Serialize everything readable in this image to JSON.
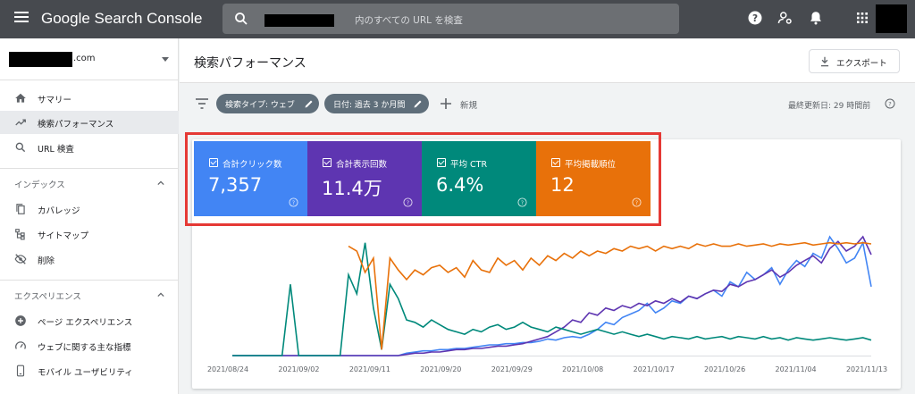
{
  "topbar": {
    "logo": "Google Search Console",
    "search_placeholder": "内のすべての URL を検査"
  },
  "sidebar": {
    "property_suffix": ".com",
    "items": [
      {
        "label": "サマリー",
        "icon": "home-icon"
      },
      {
        "label": "検索パフォーマンス",
        "icon": "trending-up-icon",
        "active": true
      },
      {
        "label": "URL 検査",
        "icon": "search-icon"
      }
    ],
    "sections": [
      {
        "title": "インデックス",
        "items": [
          {
            "label": "カバレッジ",
            "icon": "file-copy-icon"
          },
          {
            "label": "サイトマップ",
            "icon": "sitemap-icon"
          },
          {
            "label": "削除",
            "icon": "visibility-off-icon"
          }
        ]
      },
      {
        "title": "エクスペリエンス",
        "items": [
          {
            "label": "ページ エクスペリエンス",
            "icon": "add-circle-icon"
          },
          {
            "label": "ウェブに関する主な指標",
            "icon": "speed-icon"
          },
          {
            "label": "モバイル ユーザビリティ",
            "icon": "smartphone-icon"
          }
        ]
      }
    ]
  },
  "header": {
    "title": "検索パフォーマンス",
    "export_label": "エクスポート"
  },
  "filters": {
    "chips": [
      "検索タイプ: ウェブ",
      "日付: 過去 3 か月間"
    ],
    "new_label": "新規",
    "last_updated": "最終更新日: 29 時間前"
  },
  "metrics": [
    {
      "label": "合計クリック数",
      "value": "7,357",
      "color": "#4285f4"
    },
    {
      "label": "合計表示回数",
      "value": "11.4万",
      "color": "#5e35b1"
    },
    {
      "label": "平均 CTR",
      "value": "6.4%",
      "color": "#00897b"
    },
    {
      "label": "平均掲載順位",
      "value": "12",
      "color": "#e8710a"
    }
  ],
  "chart_data": {
    "type": "line",
    "x_tick_labels": [
      "2021/08/24",
      "2021/09/02",
      "2021/09/11",
      "2021/09/20",
      "2021/09/29",
      "2021/10/08",
      "2021/10/17",
      "2021/10/26",
      "2021/11/04",
      "2021/11/13"
    ],
    "series": [
      {
        "name": "合計クリック数",
        "color": "#4285f4",
        "values": [
          0,
          0,
          0,
          0,
          0,
          0,
          0,
          0,
          0,
          0,
          0,
          0,
          0,
          0,
          0,
          0,
          0,
          0,
          0,
          0,
          0,
          2,
          3,
          4,
          4,
          5,
          5,
          6,
          6,
          7,
          8,
          9,
          9,
          10,
          10,
          11,
          11,
          12,
          14,
          13,
          15,
          16,
          15,
          18,
          22,
          28,
          26,
          32,
          35,
          38,
          44,
          36,
          40,
          46,
          44,
          50,
          48,
          52,
          55,
          50,
          62,
          58,
          70,
          64,
          68,
          74,
          60,
          72,
          80,
          75,
          86,
          82,
          100,
          90,
          78,
          82,
          95,
          58
        ]
      },
      {
        "name": "合計表示回数",
        "color": "#5e35b1",
        "values": [
          0,
          0,
          0,
          0,
          0,
          0,
          0,
          0,
          0,
          0,
          0,
          0,
          0,
          0,
          0,
          0,
          0,
          0,
          0,
          0,
          0,
          1,
          2,
          2,
          3,
          3,
          4,
          5,
          5,
          6,
          6,
          7,
          8,
          8,
          9,
          10,
          12,
          14,
          16,
          20,
          24,
          30,
          28,
          36,
          34,
          40,
          38,
          42,
          40,
          44,
          42,
          46,
          44,
          48,
          45,
          50,
          48,
          52,
          55,
          54,
          60,
          58,
          62,
          64,
          68,
          72,
          66,
          70,
          76,
          80,
          84,
          78,
          90,
          96,
          88,
          92,
          100,
          85
        ]
      },
      {
        "name": "平均 CTR",
        "color": "#00897b",
        "values": [
          0,
          0,
          0,
          0,
          0,
          0,
          0,
          60,
          0,
          0,
          0,
          0,
          0,
          0,
          68,
          52,
          95,
          40,
          5,
          60,
          48,
          30,
          28,
          24,
          30,
          26,
          22,
          20,
          18,
          22,
          20,
          24,
          26,
          22,
          24,
          28,
          24,
          22,
          20,
          24,
          22,
          20,
          18,
          20,
          22,
          20,
          18,
          20,
          18,
          16,
          18,
          16,
          14,
          16,
          15,
          14,
          16,
          14,
          15,
          16,
          14,
          16,
          15,
          14,
          16,
          14,
          15,
          13,
          15,
          14,
          13,
          14,
          15,
          14,
          13,
          14,
          15,
          13
        ]
      },
      {
        "name": "平均掲載順位",
        "color": "#e8710a",
        "values": [
          null,
          null,
          null,
          null,
          null,
          null,
          null,
          null,
          null,
          null,
          null,
          null,
          null,
          null,
          92,
          88,
          70,
          82,
          5,
          82,
          72,
          64,
          72,
          68,
          74,
          76,
          70,
          74,
          66,
          80,
          72,
          70,
          82,
          76,
          80,
          72,
          82,
          76,
          84,
          80,
          86,
          82,
          88,
          84,
          88,
          86,
          90,
          88,
          92,
          90,
          92,
          88,
          92,
          90,
          92,
          90,
          94,
          92,
          94,
          92,
          92,
          94,
          92,
          93,
          94,
          92,
          94,
          93,
          94,
          95,
          93,
          94,
          95,
          94,
          95,
          94,
          95,
          94
        ]
      }
    ]
  }
}
